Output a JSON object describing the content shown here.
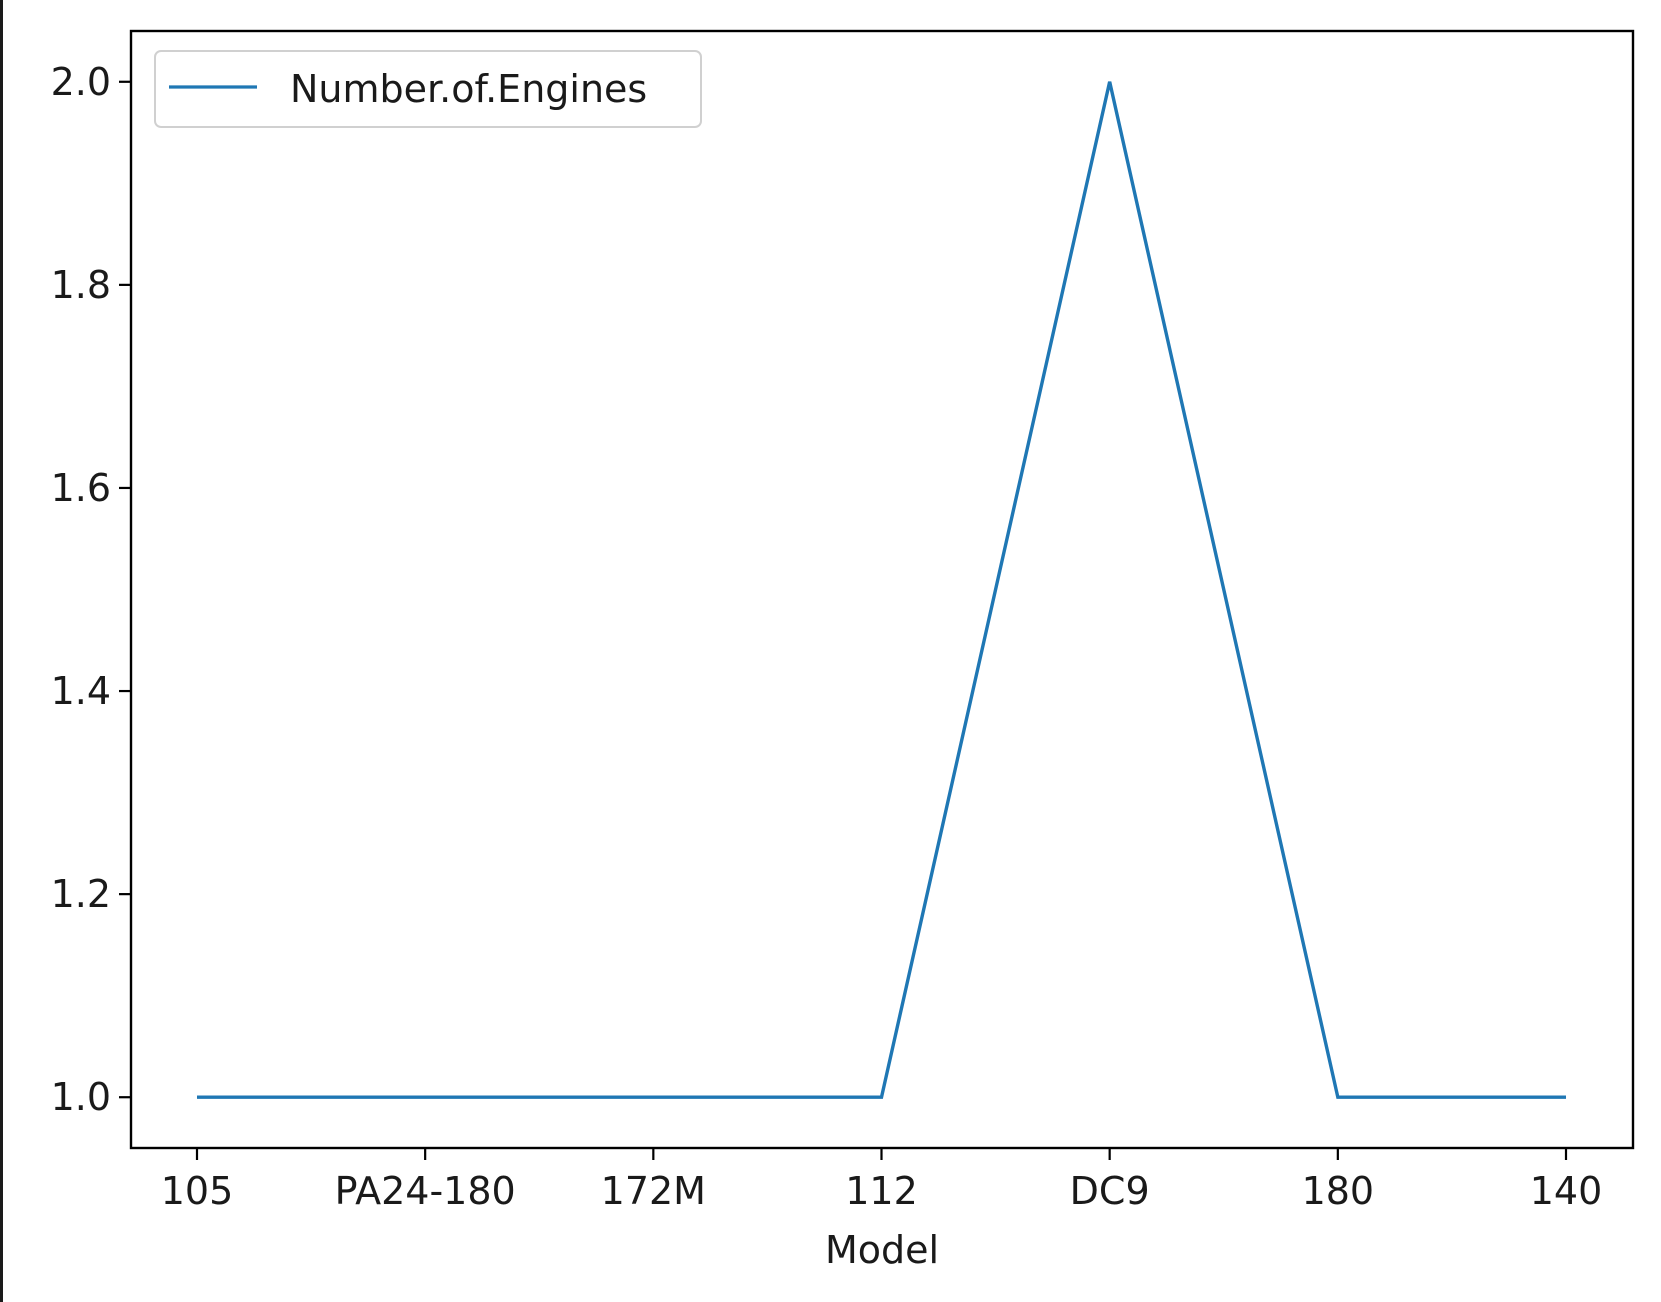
{
  "chart_data": {
    "type": "line",
    "categories": [
      "105",
      "PA24-180",
      "172M",
      "112",
      "DC9",
      "180",
      "140"
    ],
    "series": [
      {
        "name": "Number.of.Engines",
        "values": [
          1.0,
          1.0,
          1.0,
          1.0,
          2.0,
          1.0,
          1.0
        ],
        "color": "#1f77b4"
      }
    ],
    "xlabel": "Model",
    "ylabel": "",
    "title": "",
    "ylim": [
      0.95,
      2.05
    ],
    "yticks": [
      "1.0",
      "1.2",
      "1.4",
      "1.6",
      "1.8",
      "2.0"
    ],
    "legend_position": "top-left",
    "grid": false
  }
}
